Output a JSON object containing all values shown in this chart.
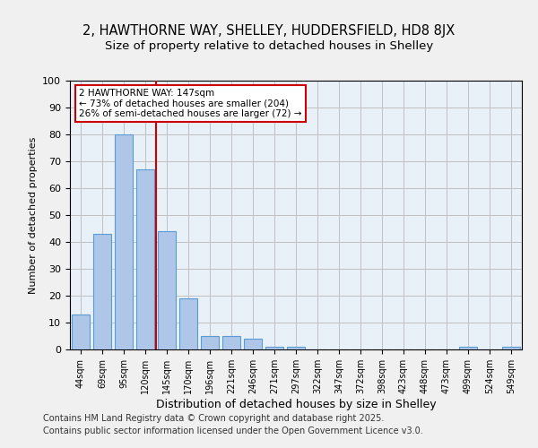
{
  "title_line1": "2, HAWTHORNE WAY, SHELLEY, HUDDERSFIELD, HD8 8JX",
  "title_line2": "Size of property relative to detached houses in Shelley",
  "xlabel": "Distribution of detached houses by size in Shelley",
  "ylabel": "Number of detached properties",
  "categories": [
    "44sqm",
    "69sqm",
    "95sqm",
    "120sqm",
    "145sqm",
    "170sqm",
    "196sqm",
    "221sqm",
    "246sqm",
    "271sqm",
    "297sqm",
    "322sqm",
    "347sqm",
    "372sqm",
    "398sqm",
    "423sqm",
    "448sqm",
    "473sqm",
    "499sqm",
    "524sqm",
    "549sqm"
  ],
  "values": [
    13,
    43,
    80,
    67,
    44,
    19,
    5,
    5,
    4,
    1,
    1,
    0,
    0,
    0,
    0,
    0,
    0,
    0,
    1,
    0,
    1
  ],
  "bar_color": "#aec6e8",
  "bar_edge_color": "#5b9bd5",
  "red_line_x": 3.5,
  "red_line_label": "2 HAWTHORNE WAY: 147sqm",
  "annotation_line2": "← 73% of detached houses are smaller (204)",
  "annotation_line3": "26% of semi-detached houses are larger (72) →",
  "annotation_box_color": "#ffffff",
  "annotation_box_edge_color": "#cc0000",
  "red_line_color": "#cc0000",
  "ylim": [
    0,
    100
  ],
  "yticks": [
    0,
    10,
    20,
    30,
    40,
    50,
    60,
    70,
    80,
    90,
    100
  ],
  "grid_color": "#c0c0c0",
  "background_color": "#e8f0f8",
  "fig_background_color": "#f0f0f0",
  "footer_line1": "Contains HM Land Registry data © Crown copyright and database right 2025.",
  "footer_line2": "Contains public sector information licensed under the Open Government Licence v3.0."
}
